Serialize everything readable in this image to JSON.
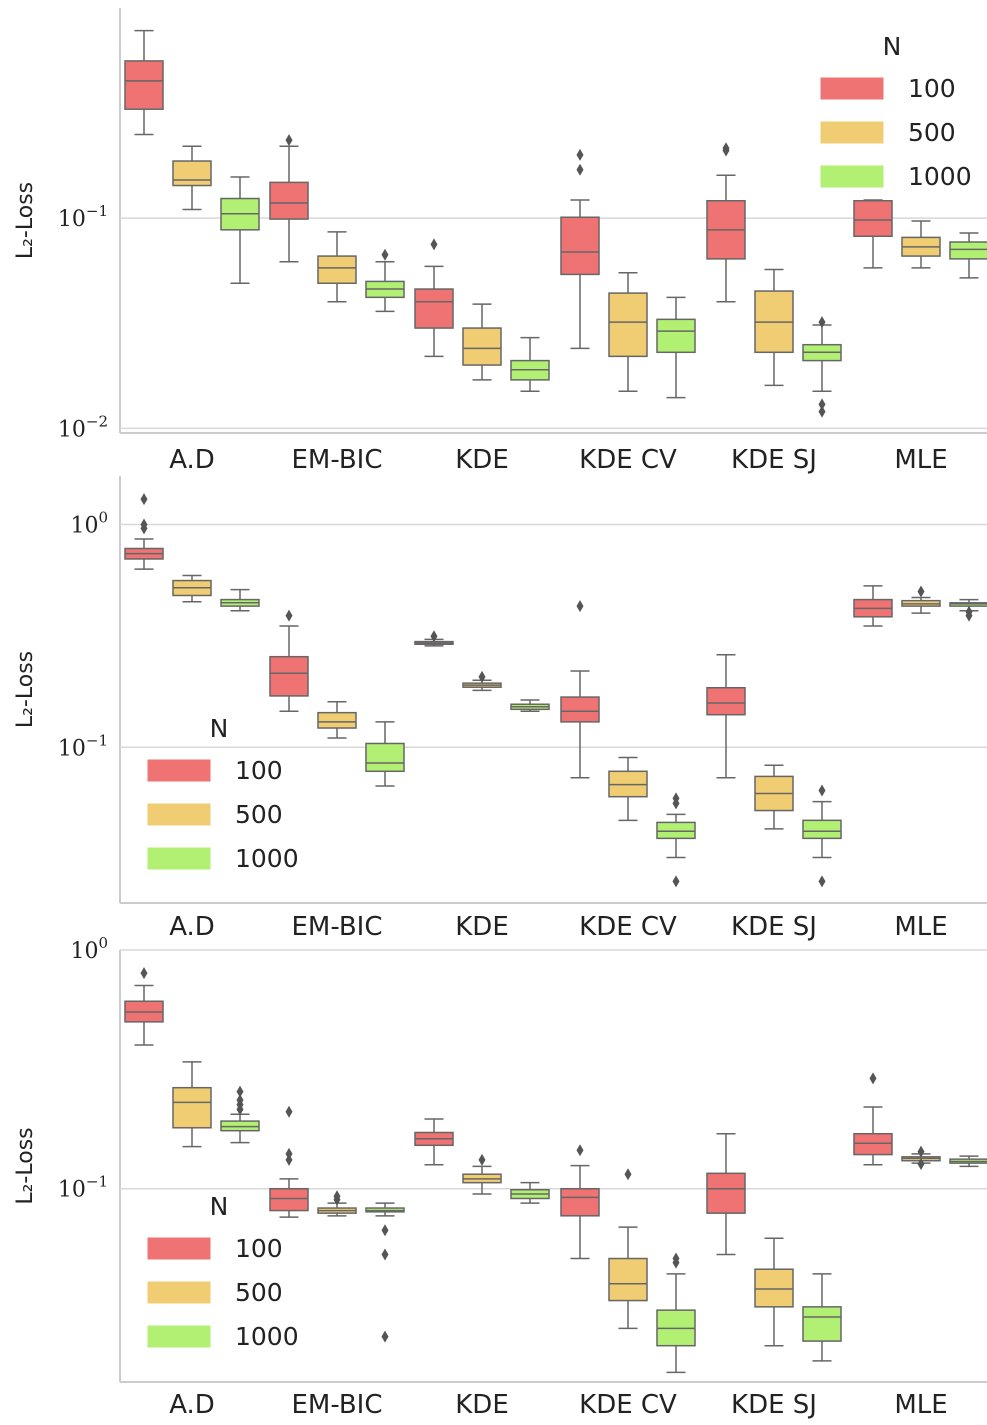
{
  "colors": {
    "100": "#f07373",
    "500": "#f0cd73",
    "1000": "#b2f073",
    "box_edge": "#666666",
    "grid": "#d8d8d8",
    "axis": "#cccccc"
  },
  "chart_data": [
    {
      "type": "box",
      "ylabel": "L₂-Loss",
      "yscale": "log",
      "ylim": [
        0.0095,
        1.0
      ],
      "yticks": [
        {
          "value": 0.01,
          "base": "10",
          "exp": "−2"
        },
        {
          "value": 0.1,
          "base": "10",
          "exp": "−1"
        }
      ],
      "categories": [
        "A.D",
        "EM-BIC",
        "KDE",
        "KDE CV",
        "KDE SJ",
        "MLE"
      ],
      "legend": {
        "title": "N",
        "placement": "upper-right",
        "entries": [
          "100",
          "500",
          "1000"
        ]
      },
      "series": [
        {
          "name": "100",
          "boxes": [
            {
              "whislo": 0.25,
              "q1": 0.33,
              "med": 0.45,
              "q3": 0.56,
              "whishi": 0.78,
              "fliers": []
            },
            {
              "whislo": 0.062,
              "q1": 0.099,
              "med": 0.118,
              "q3": 0.148,
              "whishi": 0.22,
              "fliers": [
                0.235
              ]
            },
            {
              "whislo": 0.022,
              "q1": 0.03,
              "med": 0.04,
              "q3": 0.046,
              "whishi": 0.059,
              "fliers": [
                0.075
              ]
            },
            {
              "whislo": 0.024,
              "q1": 0.054,
              "med": 0.069,
              "q3": 0.101,
              "whishi": 0.122,
              "fliers": [
                0.17,
                0.2
              ]
            },
            {
              "whislo": 0.04,
              "q1": 0.064,
              "med": 0.088,
              "q3": 0.121,
              "whishi": 0.16,
              "fliers": [
                0.21,
                0.215
              ]
            },
            {
              "whislo": 0.058,
              "q1": 0.082,
              "med": 0.098,
              "q3": 0.121,
              "whishi": 0.122,
              "fliers": []
            }
          ]
        },
        {
          "name": "500",
          "boxes": [
            {
              "whislo": 0.11,
              "q1": 0.143,
              "med": 0.152,
              "q3": 0.187,
              "whishi": 0.22,
              "fliers": []
            },
            {
              "whislo": 0.04,
              "q1": 0.049,
              "med": 0.058,
              "q3": 0.066,
              "whishi": 0.086,
              "fliers": []
            },
            {
              "whislo": 0.017,
              "q1": 0.02,
              "med": 0.024,
              "q3": 0.03,
              "whishi": 0.039,
              "fliers": []
            },
            {
              "whislo": 0.015,
              "q1": 0.022,
              "med": 0.032,
              "q3": 0.044,
              "whishi": 0.055,
              "fliers": []
            },
            {
              "whislo": 0.016,
              "q1": 0.023,
              "med": 0.032,
              "q3": 0.045,
              "whishi": 0.057,
              "fliers": []
            },
            {
              "whislo": 0.058,
              "q1": 0.066,
              "med": 0.073,
              "q3": 0.081,
              "whishi": 0.097,
              "fliers": []
            }
          ]
        },
        {
          "name": "1000",
          "boxes": [
            {
              "whislo": 0.049,
              "q1": 0.088,
              "med": 0.105,
              "q3": 0.124,
              "whishi": 0.157,
              "fliers": []
            },
            {
              "whislo": 0.036,
              "q1": 0.042,
              "med": 0.046,
              "q3": 0.05,
              "whishi": 0.062,
              "fliers": [
                0.067
              ]
            },
            {
              "whislo": 0.015,
              "q1": 0.017,
              "med": 0.019,
              "q3": 0.021,
              "whishi": 0.027,
              "fliers": []
            },
            {
              "whislo": 0.014,
              "q1": 0.023,
              "med": 0.029,
              "q3": 0.033,
              "whishi": 0.042,
              "fliers": []
            },
            {
              "whislo": 0.015,
              "q1": 0.021,
              "med": 0.023,
              "q3": 0.025,
              "whishi": 0.031,
              "fliers": [
                0.012,
                0.013,
                0.032
              ]
            },
            {
              "whislo": 0.052,
              "q1": 0.064,
              "med": 0.071,
              "q3": 0.077,
              "whishi": 0.085,
              "fliers": []
            }
          ]
        }
      ]
    },
    {
      "type": "box",
      "ylabel": "L₂-Loss",
      "yscale": "log",
      "ylim": [
        0.02,
        1.65
      ],
      "yticks": [
        {
          "value": 0.1,
          "base": "10",
          "exp": "−1"
        },
        {
          "value": 1.0,
          "base": "10",
          "exp": "0"
        }
      ],
      "categories": [
        "A.D",
        "EM-BIC",
        "KDE",
        "KDE CV",
        "KDE SJ",
        "MLE"
      ],
      "legend": {
        "title": "N",
        "placement": "center-left",
        "entries": [
          "100",
          "500",
          "1000"
        ]
      },
      "series": [
        {
          "name": "100",
          "boxes": [
            {
              "whislo": 0.63,
              "q1": 0.7,
              "med": 0.74,
              "q3": 0.78,
              "whishi": 0.86,
              "fliers": [
                0.96,
                1.0,
                1.3
              ]
            },
            {
              "whislo": 0.145,
              "q1": 0.17,
              "med": 0.215,
              "q3": 0.255,
              "whishi": 0.35,
              "fliers": [
                0.39
              ]
            },
            {
              "whislo": 0.285,
              "q1": 0.29,
              "med": 0.293,
              "q3": 0.298,
              "whishi": 0.305,
              "fliers": [
                0.315
              ]
            },
            {
              "whislo": 0.073,
              "q1": 0.13,
              "med": 0.145,
              "q3": 0.168,
              "whishi": 0.22,
              "fliers": [
                0.43
              ]
            },
            {
              "whislo": 0.073,
              "q1": 0.14,
              "med": 0.158,
              "q3": 0.185,
              "whishi": 0.26,
              "fliers": []
            },
            {
              "whislo": 0.35,
              "q1": 0.385,
              "med": 0.42,
              "q3": 0.46,
              "whishi": 0.53,
              "fliers": []
            }
          ]
        },
        {
          "name": "500",
          "boxes": [
            {
              "whislo": 0.45,
              "q1": 0.48,
              "med": 0.52,
              "q3": 0.56,
              "whishi": 0.59,
              "fliers": []
            },
            {
              "whislo": 0.11,
              "q1": 0.122,
              "med": 0.13,
              "q3": 0.143,
              "whishi": 0.16,
              "fliers": []
            },
            {
              "whislo": 0.18,
              "q1": 0.186,
              "med": 0.19,
              "q3": 0.194,
              "whishi": 0.2,
              "fliers": [
                0.207
              ]
            },
            {
              "whislo": 0.047,
              "q1": 0.06,
              "med": 0.068,
              "q3": 0.078,
              "whishi": 0.09,
              "fliers": []
            },
            {
              "whislo": 0.043,
              "q1": 0.052,
              "med": 0.062,
              "q3": 0.074,
              "whishi": 0.083,
              "fliers": []
            },
            {
              "whislo": 0.4,
              "q1": 0.43,
              "med": 0.44,
              "q3": 0.455,
              "whishi": 0.47,
              "fliers": [
                0.5
              ]
            }
          ]
        },
        {
          "name": "1000",
          "boxes": [
            {
              "whislo": 0.41,
              "q1": 0.43,
              "med": 0.445,
              "q3": 0.46,
              "whishi": 0.51,
              "fliers": []
            },
            {
              "whislo": 0.067,
              "q1": 0.078,
              "med": 0.085,
              "q3": 0.104,
              "whishi": 0.13,
              "fliers": []
            },
            {
              "whislo": 0.145,
              "q1": 0.148,
              "med": 0.152,
              "q3": 0.156,
              "whishi": 0.163,
              "fliers": []
            },
            {
              "whislo": 0.032,
              "q1": 0.039,
              "med": 0.042,
              "q3": 0.046,
              "whishi": 0.05,
              "fliers": [
                0.025,
                0.056,
                0.059
              ]
            },
            {
              "whislo": 0.032,
              "q1": 0.039,
              "med": 0.042,
              "q3": 0.047,
              "whishi": 0.057,
              "fliers": [
                0.025,
                0.064
              ]
            },
            {
              "whislo": 0.41,
              "q1": 0.43,
              "med": 0.44,
              "q3": 0.445,
              "whishi": 0.46,
              "fliers": [
                0.39,
                0.405
              ]
            }
          ]
        }
      ]
    },
    {
      "type": "box",
      "ylabel": "L₂-Loss",
      "yscale": "log",
      "ylim": [
        0.0155,
        1.0
      ],
      "yticks": [
        {
          "value": 0.1,
          "base": "10",
          "exp": "−1"
        },
        {
          "value": 1.0,
          "base": "10",
          "exp": "0"
        }
      ],
      "categories": [
        "A.D",
        "EM-BIC",
        "KDE",
        "KDE CV",
        "KDE SJ",
        "MLE"
      ],
      "legend": {
        "title": "N",
        "placement": "lower-left",
        "entries": [
          "100",
          "500",
          "1000"
        ]
      },
      "series": [
        {
          "name": "100",
          "boxes": [
            {
              "whislo": 0.4,
              "q1": 0.5,
              "med": 0.55,
              "q3": 0.61,
              "whishi": 0.71,
              "fliers": [
                0.8
              ]
            },
            {
              "whislo": 0.076,
              "q1": 0.081,
              "med": 0.091,
              "q3": 0.1,
              "whishi": 0.11,
              "fliers": [
                0.132,
                0.14,
                0.21
              ]
            },
            {
              "whislo": 0.126,
              "q1": 0.152,
              "med": 0.162,
              "q3": 0.172,
              "whishi": 0.196,
              "fliers": []
            },
            {
              "whislo": 0.051,
              "q1": 0.077,
              "med": 0.092,
              "q3": 0.1,
              "whishi": 0.125,
              "fliers": [
                0.145
              ]
            },
            {
              "whislo": 0.053,
              "q1": 0.079,
              "med": 0.1,
              "q3": 0.116,
              "whishi": 0.17,
              "fliers": []
            },
            {
              "whislo": 0.126,
              "q1": 0.139,
              "med": 0.155,
              "q3": 0.17,
              "whishi": 0.22,
              "fliers": [
                0.29
              ]
            }
          ]
        },
        {
          "name": "500",
          "boxes": [
            {
              "whislo": 0.15,
              "q1": 0.18,
              "med": 0.23,
              "q3": 0.265,
              "whishi": 0.34,
              "fliers": []
            },
            {
              "whislo": 0.077,
              "q1": 0.079,
              "med": 0.081,
              "q3": 0.083,
              "whishi": 0.087,
              "fliers": [
                0.09,
                0.093
              ]
            },
            {
              "whislo": 0.095,
              "q1": 0.106,
              "med": 0.11,
              "q3": 0.115,
              "whishi": 0.124,
              "fliers": [
                0.132
              ]
            },
            {
              "whislo": 0.026,
              "q1": 0.034,
              "med": 0.04,
              "q3": 0.051,
              "whishi": 0.069,
              "fliers": [
                0.115
              ]
            },
            {
              "whislo": 0.022,
              "q1": 0.032,
              "med": 0.038,
              "q3": 0.046,
              "whishi": 0.062,
              "fliers": []
            },
            {
              "whislo": 0.128,
              "q1": 0.131,
              "med": 0.134,
              "q3": 0.136,
              "whishi": 0.14,
              "fliers": [
                0.127,
                0.143
              ]
            }
          ]
        },
        {
          "name": "1000",
          "boxes": [
            {
              "whislo": 0.156,
              "q1": 0.175,
              "med": 0.182,
              "q3": 0.192,
              "whishi": 0.205,
              "fliers": [
                0.215,
                0.225,
                0.235,
                0.255
              ]
            },
            {
              "whislo": 0.077,
              "q1": 0.08,
              "med": 0.081,
              "q3": 0.083,
              "whishi": 0.087,
              "fliers": [
                0.024,
                0.053,
                0.067
              ]
            },
            {
              "whislo": 0.087,
              "q1": 0.091,
              "med": 0.095,
              "q3": 0.099,
              "whishi": 0.106,
              "fliers": []
            },
            {
              "whislo": 0.017,
              "q1": 0.022,
              "med": 0.026,
              "q3": 0.031,
              "whishi": 0.044,
              "fliers": [
                0.049,
                0.051
              ]
            },
            {
              "whislo": 0.019,
              "q1": 0.023,
              "med": 0.029,
              "q3": 0.032,
              "whishi": 0.044,
              "fliers": []
            },
            {
              "whislo": 0.124,
              "q1": 0.128,
              "med": 0.13,
              "q3": 0.133,
              "whishi": 0.137,
              "fliers": []
            }
          ]
        }
      ]
    }
  ]
}
